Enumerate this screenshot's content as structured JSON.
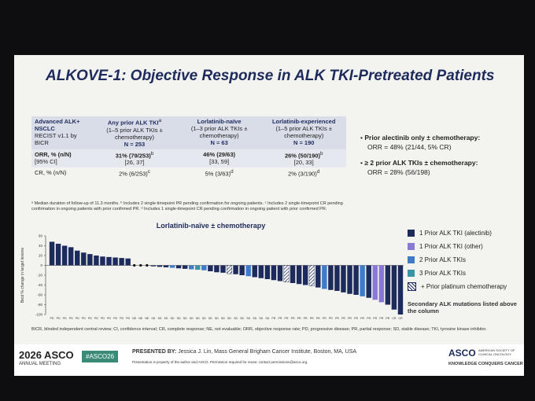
{
  "slide": {
    "title": "ALKOVE-1: Objective Response in ALK TKI-Pretreated Patients",
    "table": {
      "corner": [
        "Advanced ALK+ NSCLC",
        "RECIST v1.1 by BICR"
      ],
      "columns": [
        {
          "name": "Any prior ALK TKI",
          "note": "a",
          "sub": "(1–5 prior ALK TKIs ± chemotherapy)",
          "n": "N = 253"
        },
        {
          "name": "Lorlatinib-naïve",
          "note": "",
          "sub": "(1–3 prior ALK TKIs ± chemotherapy)",
          "n": "N = 63"
        },
        {
          "name": "Lorlatinib-experienced",
          "note": "",
          "sub": "(1–5 prior ALK TKIs ± chemotherapy)",
          "n": "N = 190"
        }
      ],
      "rows": [
        {
          "label": [
            "ORR, % (n/N)",
            "[95% CI]"
          ],
          "cells": [
            {
              "value": "31% (79/253)",
              "note": "b",
              "ci": "[26, 37]"
            },
            {
              "value": "46% (29/63)",
              "note": "",
              "ci": "[33, 59]"
            },
            {
              "value": "26% (50/190)",
              "note": "b",
              "ci": "[20, 33]"
            }
          ]
        },
        {
          "label": [
            "CR, % (n/N)"
          ],
          "cells": [
            {
              "value": "2% (6/253)",
              "note": "c"
            },
            {
              "value": "5% (3/63)",
              "note": "d"
            },
            {
              "value": "2% (3/190)",
              "note": "d"
            }
          ]
        }
      ],
      "footnote": "ᵃ Median duration of follow-up of 11.3 months. ᵇ Includes 2 single-timepoint PR pending confirmation for ongoing patients. ᶜ Includes 2 single-timepoint CR pending confirmation in ongoing patients with prior confirmed PR. ᵈ Includes 1 single-timepoint CR pending confirmation in ongoing patient with prior confirmed PR."
    },
    "bullets": [
      {
        "head": "Prior alectinib only ± chemotherapy:",
        "body": "ORR = 48% (21/44, 5% CR)"
      },
      {
        "head": "≥ 2 prior ALK TKIs ± chemotherapy:",
        "body": "ORR = 28% (56/198)"
      }
    ],
    "abbreviations": "BICR, blinded independent central review; CI, confidence interval; CR, complete response; NE, not evaluable; ORR, objective response rate; PD, progressive disease; PR, partial response; SD, stable disease; TKI, tyrosine kinase inhibitor.",
    "footer": {
      "meeting": "2026 ASCO",
      "meeting_sub": "ANNUAL MEETING",
      "hashtag": "#ASCO26",
      "presenter_label": "PRESENTED BY:",
      "presenter": "Jessica J. Lin, Mass General Brigham Cancer Institute, Boston, MA, USA",
      "permission": "Presentation is property of the author and ASCO. Permission required for reuse; contact permissions@asco.org.",
      "logo": "ASCO",
      "logo_sub": "AMERICAN SOCIETY OF CLINICAL ONCOLOGY",
      "tagline": "KNOWLEDGE CONQUERS CANCER"
    }
  },
  "chart_data": {
    "type": "bar",
    "title": "Lorlatinib-naïve ± chemotherapy",
    "y_label": "Best % change in target lesions",
    "ylim": [
      -100,
      60
    ],
    "yticks": [
      60,
      40,
      20,
      0,
      -20,
      -40,
      -60,
      -80,
      -100
    ],
    "categories": [
      "PD",
      "PD",
      "PD",
      "PD",
      "PD",
      "PD",
      "PD",
      "PD",
      "PD",
      "PD",
      "PD",
      "PD",
      "PD",
      "NE",
      "NE",
      "NE",
      "SD",
      "SD",
      "SD",
      "SD",
      "SD",
      "SD",
      "SD",
      "SD",
      "SD",
      "SD",
      "SD",
      "SD",
      "SD",
      "SD",
      "SD",
      "SD",
      "SD",
      "SD",
      "SD",
      "PR",
      "PR",
      "PR",
      "PR",
      "PR",
      "PR",
      "PR",
      "PR",
      "PR",
      "PR",
      "PR",
      "PR",
      "PR",
      "PR",
      "PR",
      "PR",
      "PR",
      "PR",
      "PR",
      "CR",
      "CR"
    ],
    "values": [
      48,
      44,
      40,
      37,
      30,
      26,
      23,
      20,
      18,
      17,
      16,
      15,
      14,
      0,
      0,
      0,
      -2,
      -3,
      -4,
      -5,
      -6,
      -7,
      -8,
      -9,
      -10,
      -12,
      -14,
      -15,
      -17,
      -18,
      -20,
      -22,
      -24,
      -26,
      -28,
      -30,
      -32,
      -34,
      -36,
      -38,
      -40,
      -42,
      -45,
      -48,
      -50,
      -52,
      -55,
      -58,
      -60,
      -63,
      -66,
      -70,
      -75,
      -80,
      -90,
      -100
    ],
    "groups": [
      0,
      0,
      0,
      0,
      0,
      0,
      0,
      0,
      0,
      0,
      0,
      0,
      0,
      0,
      0,
      0,
      0,
      0,
      0,
      2,
      0,
      0,
      2,
      3,
      2,
      0,
      0,
      0,
      4,
      0,
      0,
      2,
      0,
      0,
      0,
      0,
      0,
      4,
      0,
      0,
      0,
      4,
      0,
      2,
      0,
      0,
      0,
      0,
      0,
      2,
      0,
      1,
      1,
      0,
      0,
      0
    ],
    "legend": [
      {
        "name": "1 Prior ALK TKI (alectinib)",
        "color": "#1d2a5c"
      },
      {
        "name": "1 Prior ALK TKI (other)",
        "color": "#8a78d6"
      },
      {
        "name": "2 Prior ALK TKIs",
        "color": "#3d7cc9"
      },
      {
        "name": "3 Prior ALK TKIs",
        "color": "#3b93a6"
      },
      {
        "name": "+ Prior platinum chemotherapy",
        "color": "hatch"
      }
    ],
    "legend_note": "Secondary ALK mutations listed above the column"
  }
}
